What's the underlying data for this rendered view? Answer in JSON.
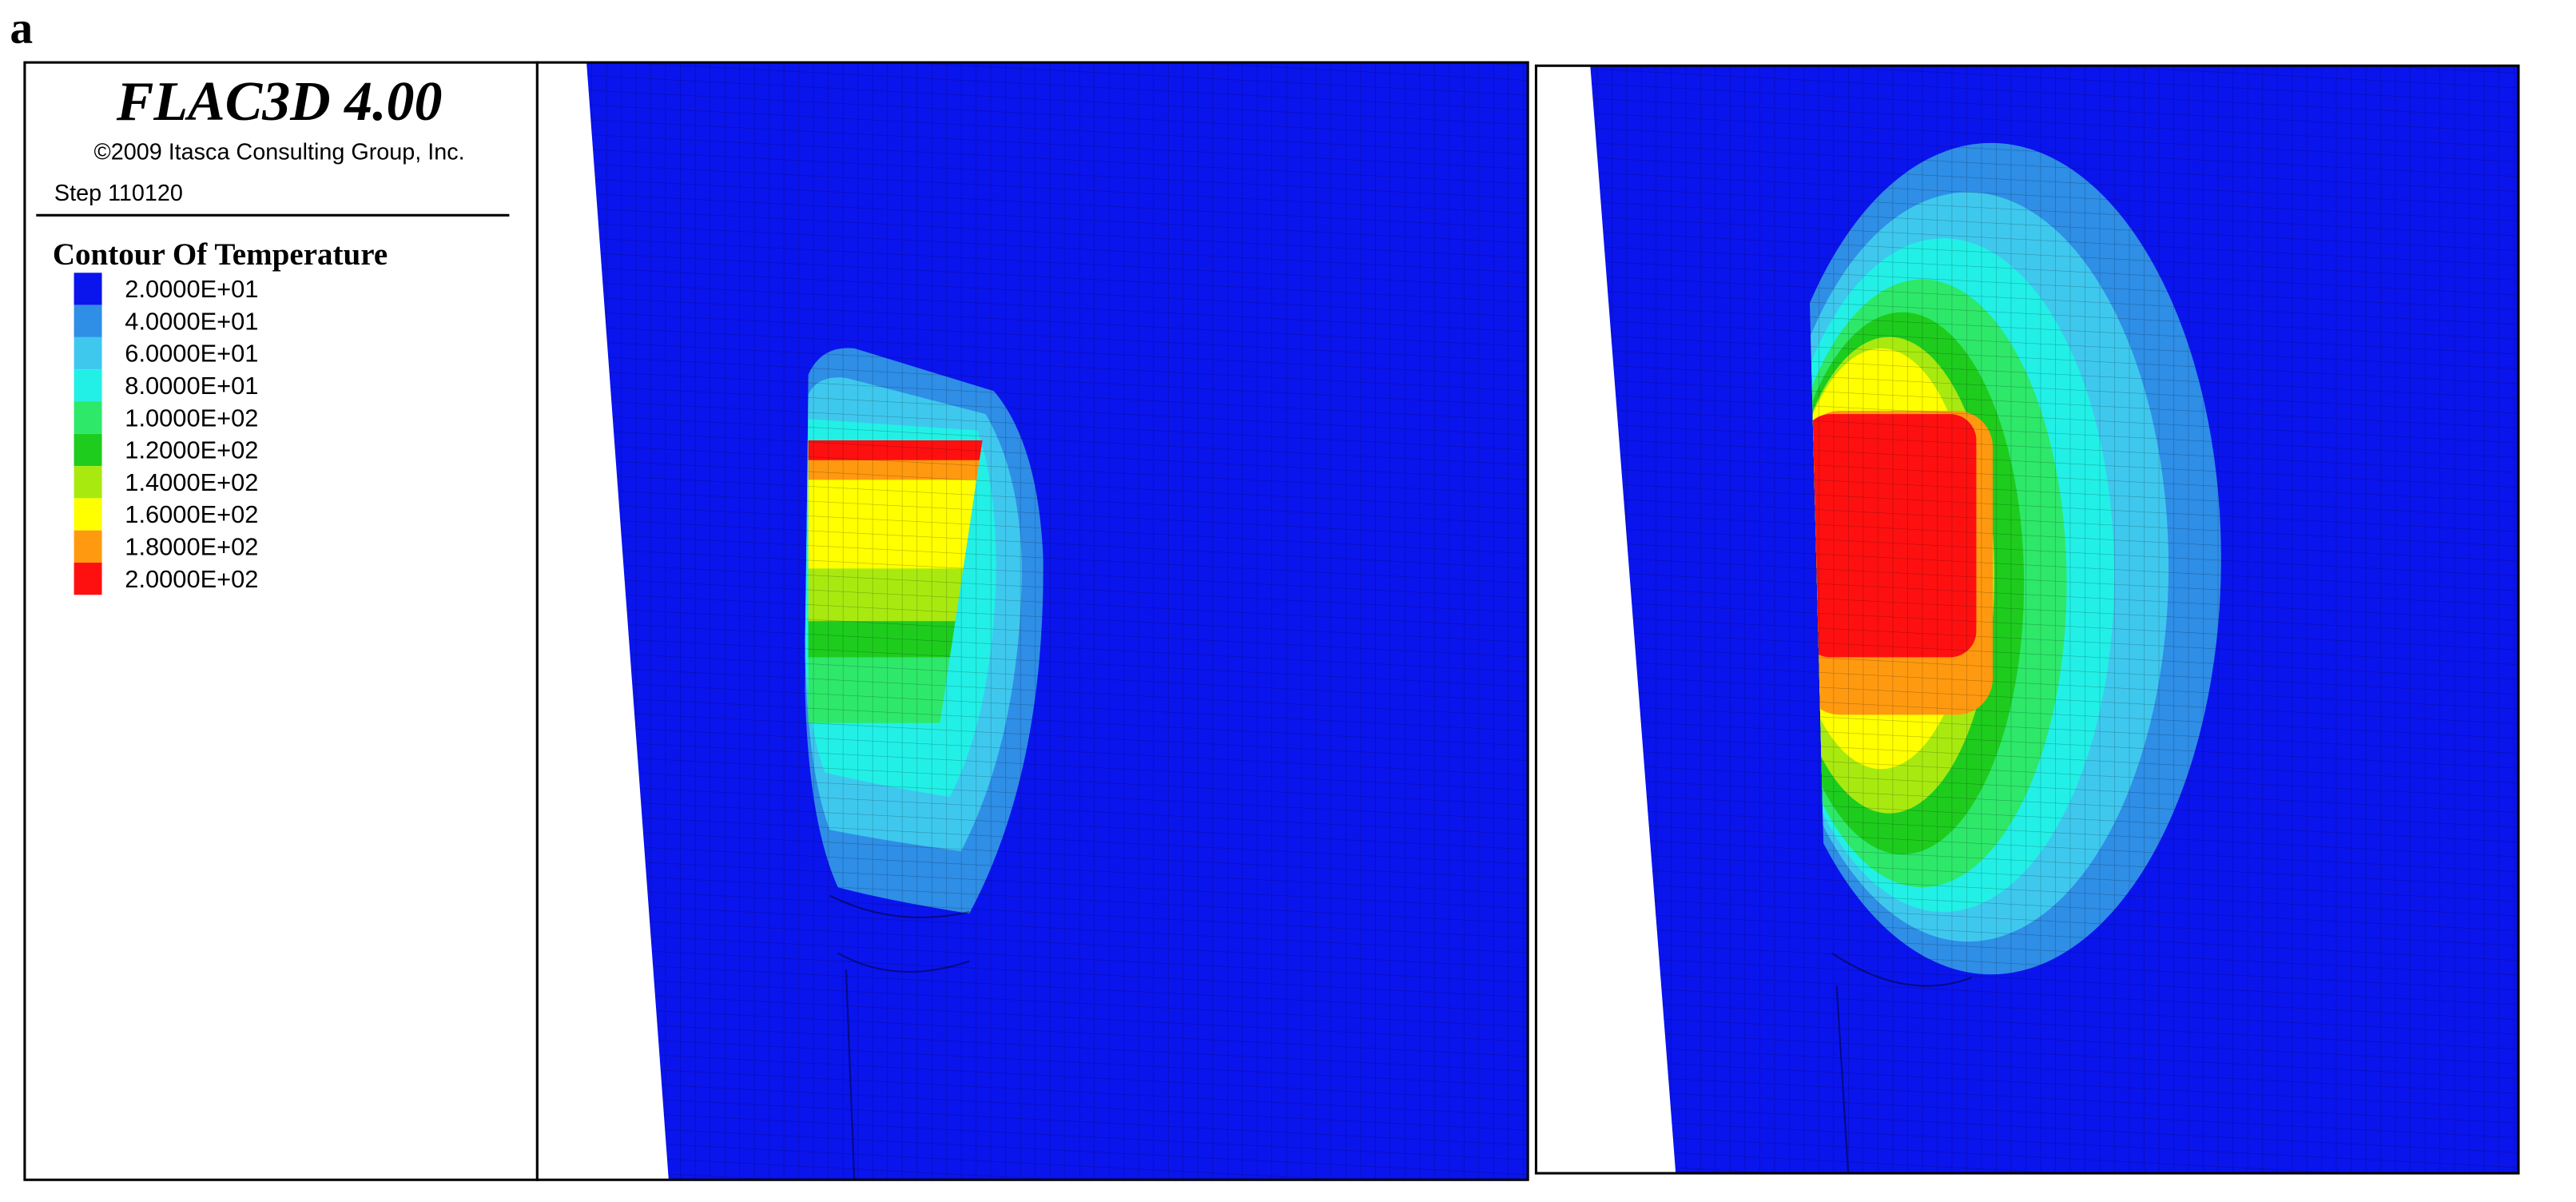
{
  "figure_label": "a",
  "legend": {
    "title": "FLAC3D 4.00",
    "copyright": "©2009 Itasca Consulting Group, Inc.",
    "step": "Step 110120",
    "contour_title": "Contour Of Temperature",
    "items": [
      {
        "label": "2.0000E+01",
        "color": "#0a14ec"
      },
      {
        "label": "4.0000E+01",
        "color": "#2f8ee6"
      },
      {
        "label": "6.0000E+01",
        "color": "#3fc8ee"
      },
      {
        "label": "8.0000E+01",
        "color": "#22f0e6"
      },
      {
        "label": "1.0000E+02",
        "color": "#2ee86a"
      },
      {
        "label": "1.2000E+02",
        "color": "#1ecc1e"
      },
      {
        "label": "1.4000E+02",
        "color": "#a8ea10"
      },
      {
        "label": "1.6000E+02",
        "color": "#ffff00"
      },
      {
        "label": "1.8000E+02",
        "color": "#ff9a10"
      },
      {
        "label": "2.0000E+02",
        "color": "#ff1010"
      }
    ]
  }
}
